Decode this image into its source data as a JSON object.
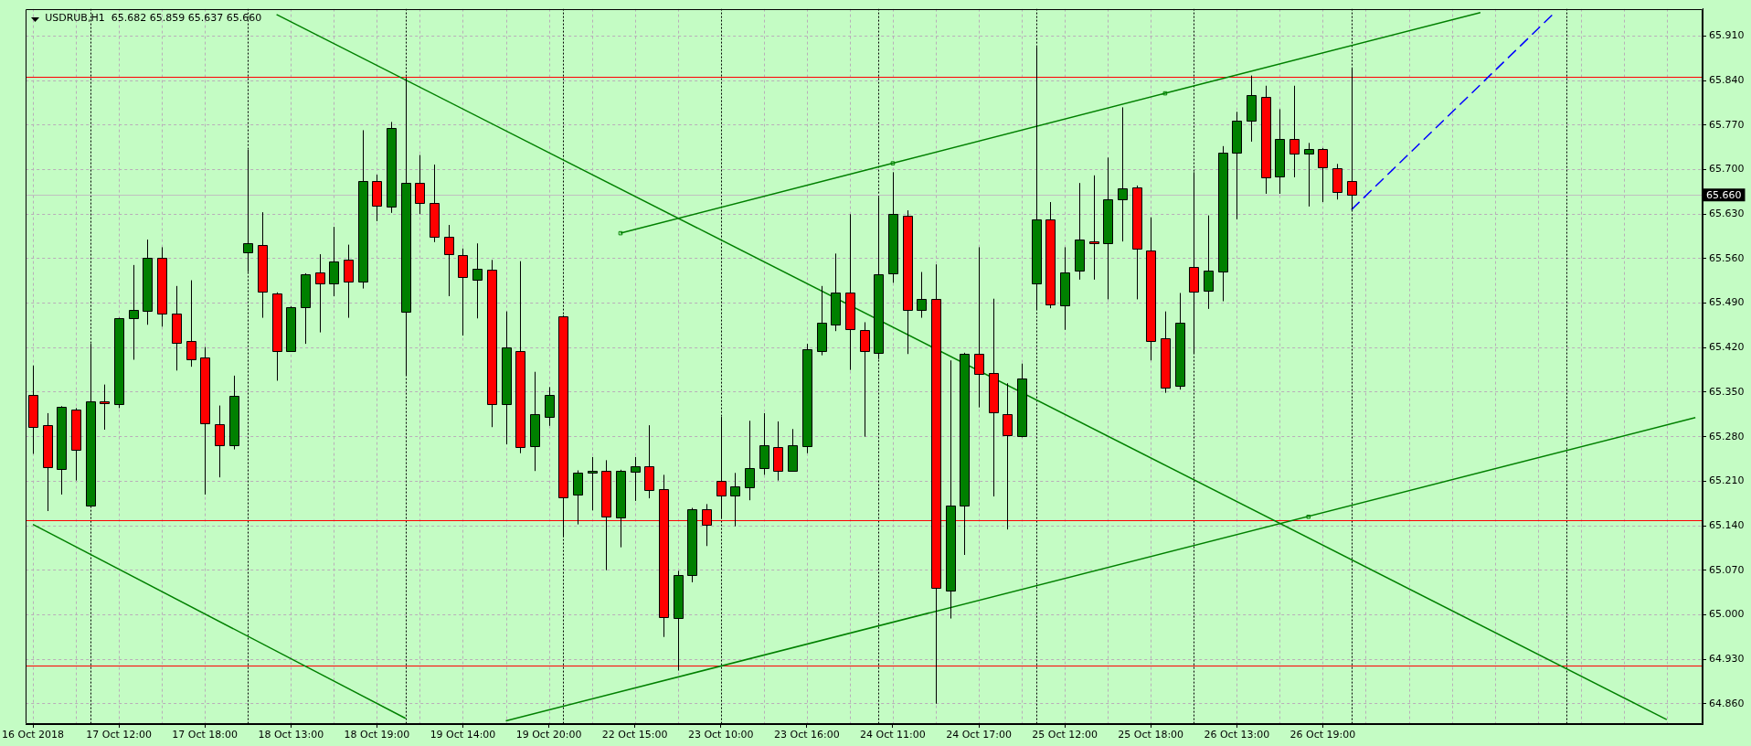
{
  "chart_data": {
    "type": "candlestick",
    "title": "USDRUB,H1  65.682 65.859 65.637 65.660",
    "categories": [
      "16 Oct 2018",
      null,
      null,
      null,
      null,
      null,
      "17 Oct 12:00",
      null,
      null,
      null,
      null,
      null,
      "17 Oct 18:00",
      null,
      null,
      null,
      null,
      null,
      "18 Oct 13:00",
      null,
      null,
      null,
      null,
      null,
      "18 Oct 19:00",
      null,
      null,
      null,
      null,
      null,
      "19 Oct 14:00",
      null,
      null,
      null,
      null,
      null,
      "19 Oct 20:00",
      null,
      null,
      null,
      null,
      null,
      "22 Oct 15:00",
      null,
      null,
      null,
      null,
      null,
      "23 Oct 10:00",
      null,
      null,
      null,
      null,
      null,
      "23 Oct 16:00",
      null,
      null,
      null,
      null,
      null,
      "24 Oct 11:00",
      null,
      null,
      null,
      null,
      null,
      "24 Oct 17:00",
      null,
      null,
      null,
      null,
      null,
      "25 Oct 12:00",
      null,
      null,
      null,
      null,
      null,
      "25 Oct 18:00",
      null,
      null,
      null,
      null,
      null,
      "26 Oct 13:00",
      null,
      null,
      null,
      null,
      null,
      "26 Oct 19:00",
      null,
      null,
      null,
      null,
      null,
      null,
      null,
      null,
      null,
      null,
      null,
      null,
      null,
      null,
      null,
      null,
      null,
      null,
      null,
      null,
      null,
      null,
      null,
      null,
      null,
      null
    ],
    "ohlc": [
      [
        65.346,
        65.392,
        65.253,
        65.295
      ],
      [
        65.298,
        65.317,
        65.163,
        65.232
      ],
      [
        65.229,
        65.328,
        65.189,
        65.327
      ],
      [
        65.323,
        65.325,
        65.211,
        65.26
      ],
      [
        65.172,
        65.426,
        65.172,
        65.336
      ],
      [
        65.335,
        65.362,
        65.291,
        65.332
      ],
      [
        65.331,
        65.467,
        65.325,
        65.466
      ],
      [
        65.467,
        65.55,
        65.401,
        65.48
      ],
      [
        65.478,
        65.59,
        65.456,
        65.562
      ],
      [
        65.561,
        65.578,
        65.453,
        65.474
      ],
      [
        65.474,
        65.517,
        65.384,
        65.428
      ],
      [
        65.43,
        65.526,
        65.39,
        65.401
      ],
      [
        65.404,
        65.421,
        65.189,
        65.3
      ],
      [
        65.299,
        65.329,
        65.216,
        65.266
      ],
      [
        65.266,
        65.376,
        65.26,
        65.344
      ],
      [
        65.57,
        65.731,
        65.539,
        65.584
      ],
      [
        65.582,
        65.633,
        65.467,
        65.508
      ],
      [
        65.505,
        65.507,
        65.368,
        65.414
      ],
      [
        65.415,
        65.485,
        65.414,
        65.484
      ],
      [
        65.484,
        65.537,
        65.426,
        65.536
      ],
      [
        65.538,
        65.567,
        65.444,
        65.521
      ],
      [
        65.521,
        65.61,
        65.501,
        65.556
      ],
      [
        65.558,
        65.582,
        65.467,
        65.524
      ],
      [
        65.524,
        65.762,
        65.513,
        65.682
      ],
      [
        65.682,
        65.692,
        65.619,
        65.643
      ],
      [
        65.642,
        65.775,
        65.632,
        65.765
      ],
      [
        65.476,
        65.845,
        65.376,
        65.679
      ],
      [
        65.679,
        65.723,
        65.63,
        65.648
      ],
      [
        65.648,
        65.708,
        65.586,
        65.595
      ],
      [
        65.595,
        65.613,
        65.501,
        65.567
      ],
      [
        65.565,
        65.576,
        65.439,
        65.53
      ],
      [
        65.527,
        65.584,
        65.466,
        65.544
      ],
      [
        65.542,
        65.558,
        65.295,
        65.331
      ],
      [
        65.331,
        65.477,
        65.268,
        65.42
      ],
      [
        65.415,
        65.556,
        65.254,
        65.264
      ],
      [
        65.264,
        65.382,
        65.226,
        65.315
      ],
      [
        65.312,
        65.358,
        65.297,
        65.346
      ],
      [
        65.47,
        65.471,
        65.122,
        65.185
      ],
      [
        65.188,
        65.227,
        65.142,
        65.223
      ],
      [
        65.223,
        65.248,
        65.164,
        65.226
      ],
      [
        65.226,
        65.243,
        65.07,
        65.154
      ],
      [
        65.154,
        65.228,
        65.106,
        65.227
      ],
      [
        65.224,
        65.248,
        65.179,
        65.233
      ],
      [
        65.233,
        65.298,
        65.183,
        65.196
      ],
      [
        65.197,
        65.22,
        64.965,
        64.996
      ],
      [
        64.995,
        65.069,
        64.912,
        65.062
      ],
      [
        65.062,
        65.168,
        65.051,
        65.166
      ],
      [
        65.166,
        65.174,
        65.108,
        65.142
      ],
      [
        65.211,
        65.311,
        65.151,
        65.188
      ],
      [
        65.188,
        65.223,
        65.139,
        65.202
      ],
      [
        65.2,
        65.305,
        65.18,
        65.23
      ],
      [
        65.23,
        65.317,
        65.22,
        65.266
      ],
      [
        65.263,
        65.304,
        65.211,
        65.226
      ],
      [
        65.226,
        65.292,
        65.226,
        65.266
      ],
      [
        65.264,
        65.426,
        65.254,
        65.417
      ],
      [
        65.415,
        65.517,
        65.408,
        65.459
      ],
      [
        65.456,
        65.568,
        65.446,
        65.507
      ],
      [
        65.507,
        65.63,
        65.385,
        65.45
      ],
      [
        65.448,
        65.46,
        65.28,
        65.415
      ],
      [
        65.412,
        65.657,
        65.402,
        65.536
      ],
      [
        65.536,
        65.696,
        65.522,
        65.63
      ],
      [
        65.627,
        65.636,
        65.41,
        65.479
      ],
      [
        65.479,
        65.539,
        65.467,
        65.496
      ],
      [
        65.496,
        65.551,
        64.86,
        65.042
      ],
      [
        65.038,
        65.4,
        64.994,
        65.172
      ],
      [
        65.172,
        65.412,
        65.094,
        65.41
      ],
      [
        65.41,
        65.578,
        65.326,
        65.378
      ],
      [
        65.38,
        65.497,
        65.186,
        65.318
      ],
      [
        65.315,
        65.364,
        65.134,
        65.282
      ],
      [
        65.28,
        65.395,
        65.279,
        65.371
      ],
      [
        65.521,
        65.893,
        65.479,
        65.622
      ],
      [
        65.622,
        65.649,
        65.482,
        65.488
      ],
      [
        65.487,
        65.578,
        65.448,
        65.539
      ],
      [
        65.541,
        65.679,
        65.527,
        65.59
      ],
      [
        65.587,
        65.691,
        65.527,
        65.584
      ],
      [
        65.584,
        65.719,
        65.496,
        65.653
      ],
      [
        65.653,
        65.798,
        65.587,
        65.67
      ],
      [
        65.672,
        65.675,
        65.496,
        65.575
      ],
      [
        65.573,
        65.625,
        65.4,
        65.43
      ],
      [
        65.435,
        65.477,
        65.349,
        65.357
      ],
      [
        65.36,
        65.506,
        65.354,
        65.459
      ],
      [
        65.547,
        65.696,
        65.411,
        65.508
      ],
      [
        65.51,
        65.628,
        65.481,
        65.541
      ],
      [
        65.539,
        65.737,
        65.493,
        65.726
      ],
      [
        65.726,
        65.791,
        65.622,
        65.777
      ],
      [
        65.777,
        65.848,
        65.744,
        65.817
      ],
      [
        65.815,
        65.832,
        65.662,
        65.689
      ],
      [
        65.689,
        65.795,
        65.662,
        65.748
      ],
      [
        65.748,
        65.832,
        65.688,
        65.725
      ],
      [
        65.725,
        65.742,
        65.642,
        65.732
      ],
      [
        65.732,
        65.734,
        65.649,
        65.703
      ],
      [
        65.702,
        65.709,
        65.653,
        65.665
      ],
      [
        65.682,
        65.859,
        65.637,
        65.66
      ],
      null,
      null,
      null,
      null,
      null,
      null,
      null,
      null,
      null,
      null,
      null,
      null,
      null,
      null,
      null,
      null,
      null,
      null,
      null,
      null,
      null,
      null,
      null,
      null
    ],
    "colors": [
      "#ff0000",
      "#ff0000",
      "#008000",
      "#ff0000",
      "#008000",
      "#ff0000",
      "#008000",
      "#008000",
      "#008000",
      "#ff0000",
      "#ff0000",
      "#ff0000",
      "#ff0000",
      "#ff0000",
      "#008000",
      "#008000",
      "#ff0000",
      "#ff0000",
      "#008000",
      "#008000",
      "#ff0000",
      "#008000",
      "#ff0000",
      "#008000",
      "#ff0000",
      "#008000",
      "#008000",
      "#ff0000",
      "#ff0000",
      "#ff0000",
      "#ff0000",
      "#008000",
      "#ff0000",
      "#008000",
      "#ff0000",
      "#008000",
      "#008000",
      "#ff0000",
      "#008000",
      "#008000",
      "#ff0000",
      "#008000",
      "#008000",
      "#ff0000",
      "#ff0000",
      "#008000",
      "#008000",
      "#ff0000",
      "#ff0000",
      "#008000",
      "#008000",
      "#008000",
      "#ff0000",
      "#008000",
      "#008000",
      "#008000",
      "#008000",
      "#ff0000",
      "#ff0000",
      "#008000",
      "#008000",
      "#ff0000",
      "#008000",
      "#ff0000",
      "#008000",
      "#008000",
      "#ff0000",
      "#ff0000",
      "#ff0000",
      "#008000",
      "#008000",
      "#ff0000",
      "#008000",
      "#008000",
      "#ff0000",
      "#008000",
      "#008000",
      "#ff0000",
      "#ff0000",
      "#ff0000",
      "#008000",
      "#ff0000",
      "#008000",
      "#008000",
      "#008000",
      "#008000",
      "#ff0000",
      "#008000",
      "#ff0000",
      "#008000",
      "#ff0000",
      "#ff0000",
      "#ff0000",
      null,
      null,
      null,
      null,
      null,
      null,
      null,
      null,
      null,
      null,
      null,
      null,
      null,
      null,
      null,
      null,
      null,
      null,
      null,
      null,
      null,
      null,
      null,
      null
    ],
    "ylim": [
      64.828,
      65.953
    ],
    "yticks": [
      {
        "value": 64.86,
        "label": "64.860"
      },
      {
        "value": 64.93,
        "label": "64.930"
      },
      {
        "value": 65.0,
        "label": "65.000"
      },
      {
        "value": 65.07,
        "label": "65.070"
      },
      {
        "value": 65.14,
        "label": "65.140"
      },
      {
        "value": 65.21,
        "label": "65.210"
      },
      {
        "value": 65.28,
        "label": "65.280"
      },
      {
        "value": 65.35,
        "label": "65.350"
      },
      {
        "value": 65.42,
        "label": "65.420"
      },
      {
        "value": 65.49,
        "label": "65.490"
      },
      {
        "value": 65.56,
        "label": "65.560"
      },
      {
        "value": 65.63,
        "label": "65.630"
      },
      {
        "value": 65.7,
        "label": "65.700"
      },
      {
        "value": 65.77,
        "label": "65.770"
      },
      {
        "value": 65.84,
        "label": "65.840"
      },
      {
        "value": 65.91,
        "label": "65.910"
      }
    ],
    "grid": true,
    "series": [
      {
        "type": "line",
        "color": "#008000",
        "values": [
          null,
          null,
          null,
          null,
          null,
          null,
          null,
          null,
          null,
          null,
          null,
          null,
          null,
          null,
          null,
          null,
          null,
          65.944,
          null,
          null,
          null,
          null,
          null,
          null,
          null,
          null,
          null,
          null,
          null,
          null,
          null,
          null,
          null,
          null,
          null,
          null,
          null,
          null,
          null,
          null,
          null,
          null,
          null,
          null,
          null,
          null,
          null,
          null,
          null,
          null,
          null,
          null,
          null,
          null,
          null,
          null,
          null,
          null,
          null,
          null,
          null,
          null,
          null,
          null,
          null,
          null,
          null,
          null,
          null,
          null,
          null,
          null,
          null,
          null,
          null,
          null,
          null,
          null,
          null,
          null,
          null,
          null,
          null,
          null,
          null,
          null,
          null,
          null,
          null,
          null,
          null,
          null,
          null,
          null,
          null,
          null,
          null,
          null,
          null,
          null,
          null,
          null,
          null,
          null,
          null,
          null,
          null,
          null,
          null,
          null,
          null,
          null,
          null,
          null,
          64.835,
          null,
          null
        ]
      },
      {
        "type": "line",
        "color": "#008000",
        "values": [
          65.142,
          null,
          null,
          null,
          null,
          null,
          null,
          null,
          null,
          null,
          null,
          null,
          null,
          null,
          null,
          null,
          null,
          null,
          null,
          null,
          null,
          null,
          null,
          null,
          null,
          null,
          64.837,
          null,
          null,
          null,
          null,
          null,
          null,
          null,
          null,
          null,
          null,
          null,
          null,
          null,
          null,
          null,
          null,
          null,
          null,
          null,
          null,
          null,
          null,
          null,
          null,
          null,
          null,
          null,
          null,
          null,
          null,
          null,
          null,
          null,
          null,
          null,
          null,
          null,
          null,
          null,
          null,
          null,
          null,
          null,
          null,
          null,
          null,
          null,
          null,
          null,
          null,
          null,
          null,
          null,
          null,
          null,
          null,
          null,
          null,
          null,
          null,
          null,
          null,
          null,
          null,
          null,
          null,
          null,
          null,
          null,
          null,
          null,
          null,
          null,
          null,
          null,
          null,
          null,
          null,
          null,
          null,
          null,
          null,
          null,
          null,
          null,
          null,
          null,
          null,
          null,
          null
        ]
      },
      {
        "type": "line",
        "color": "#008000",
        "values": [
          null,
          null,
          null,
          null,
          null,
          null,
          null,
          null,
          null,
          null,
          null,
          null,
          null,
          null,
          null,
          null,
          null,
          null,
          null,
          null,
          null,
          null,
          null,
          null,
          null,
          null,
          null,
          null,
          null,
          null,
          null,
          null,
          null,
          null,
          null,
          null,
          null,
          null,
          null,
          null,
          null,
          65.6,
          null,
          null,
          null,
          null,
          null,
          null,
          null,
          null,
          null,
          null,
          null,
          null,
          null,
          null,
          null,
          null,
          null,
          null,
          65.71,
          null,
          null,
          null,
          null,
          null,
          null,
          null,
          null,
          null,
          null,
          null,
          null,
          null,
          null,
          null,
          null,
          null,
          null,
          65.82,
          null,
          null,
          null,
          null,
          null,
          null,
          null,
          null,
          null,
          null,
          null,
          null,
          null,
          null,
          null,
          null,
          null,
          null,
          null,
          null,
          null,
          65.947,
          null,
          null,
          null,
          null,
          null,
          null,
          null,
          null,
          null,
          null,
          null,
          null,
          null,
          null,
          null
        ]
      },
      {
        "type": "line",
        "color": "#008000",
        "values": [
          null,
          null,
          null,
          null,
          null,
          null,
          null,
          null,
          null,
          null,
          null,
          null,
          null,
          null,
          null,
          null,
          null,
          null,
          null,
          null,
          null,
          null,
          null,
          null,
          null,
          null,
          null,
          null,
          null,
          null,
          null,
          null,
          null,
          64.833,
          null,
          null,
          null,
          null,
          null,
          null,
          null,
          null,
          null,
          null,
          null,
          null,
          null,
          null,
          null,
          null,
          null,
          null,
          null,
          null,
          null,
          null,
          null,
          null,
          null,
          null,
          null,
          null,
          null,
          null,
          null,
          null,
          null,
          null,
          null,
          null,
          null,
          null,
          null,
          null,
          null,
          null,
          null,
          null,
          null,
          null,
          null,
          null,
          null,
          null,
          null,
          null,
          null,
          null,
          null,
          null,
          null,
          null,
          null,
          null,
          null,
          null,
          null,
          null,
          null,
          null,
          null,
          null,
          null,
          null,
          null,
          null,
          null,
          null,
          null,
          null,
          null,
          null,
          null,
          null,
          null,
          null,
          65.31
        ]
      },
      {
        "type": "line",
        "color": "#0000ff",
        "line_style": "dashed",
        "values": [
          null,
          null,
          null,
          null,
          null,
          null,
          null,
          null,
          null,
          null,
          null,
          null,
          null,
          null,
          null,
          null,
          null,
          null,
          null,
          null,
          null,
          null,
          null,
          null,
          null,
          null,
          null,
          null,
          null,
          null,
          null,
          null,
          null,
          null,
          null,
          null,
          null,
          null,
          null,
          null,
          null,
          null,
          null,
          null,
          null,
          null,
          null,
          null,
          null,
          null,
          null,
          null,
          null,
          null,
          null,
          null,
          null,
          null,
          null,
          null,
          null,
          null,
          null,
          null,
          null,
          null,
          null,
          null,
          null,
          null,
          null,
          null,
          null,
          null,
          null,
          null,
          null,
          null,
          null,
          null,
          null,
          null,
          null,
          null,
          null,
          null,
          null,
          null,
          null,
          null,
          null,
          null,
          65.637,
          null,
          null,
          null,
          null,
          null,
          null,
          null,
          null,
          null,
          null,
          null,
          null,
          null,
          65.943,
          null,
          null,
          null,
          null,
          null,
          null,
          null,
          null,
          null,
          null
        ]
      },
      {
        "type": "scatter",
        "color": "#008000",
        "marker": "square",
        "values": [
          null,
          null,
          null,
          null,
          null,
          null,
          null,
          null,
          null,
          null,
          null,
          null,
          null,
          null,
          null,
          null,
          null,
          null,
          null,
          null,
          null,
          null,
          null,
          null,
          null,
          null,
          null,
          null,
          null,
          null,
          null,
          null,
          null,
          null,
          null,
          null,
          null,
          null,
          null,
          null,
          null,
          65.6,
          null,
          null,
          null,
          null,
          null,
          null,
          null,
          null,
          null,
          null,
          null,
          null,
          null,
          null,
          null,
          null,
          null,
          null,
          65.71,
          null,
          null,
          null,
          null,
          null,
          null,
          null,
          null,
          null,
          null,
          null,
          null,
          null,
          null,
          null,
          null,
          null,
          null,
          65.82,
          null,
          null,
          null,
          null,
          null,
          null,
          null,
          null,
          null,
          65.154,
          null,
          null,
          null,
          null,
          null,
          null,
          null,
          null,
          null,
          null,
          null,
          null,
          null,
          null,
          null,
          null,
          null,
          null,
          null,
          null,
          null,
          null,
          null,
          null,
          null,
          null,
          null
        ]
      }
    ],
    "ref_lines": [
      {
        "axis": "y",
        "value": 65.846,
        "color": "#ff0000"
      },
      {
        "axis": "y",
        "value": 65.149,
        "color": "#ff0000"
      },
      {
        "axis": "y",
        "value": 64.92,
        "color": "#ff0000"
      },
      {
        "axis": "y",
        "value": 65.66,
        "label": "65.660",
        "color": "#c0c0c0"
      }
    ]
  }
}
